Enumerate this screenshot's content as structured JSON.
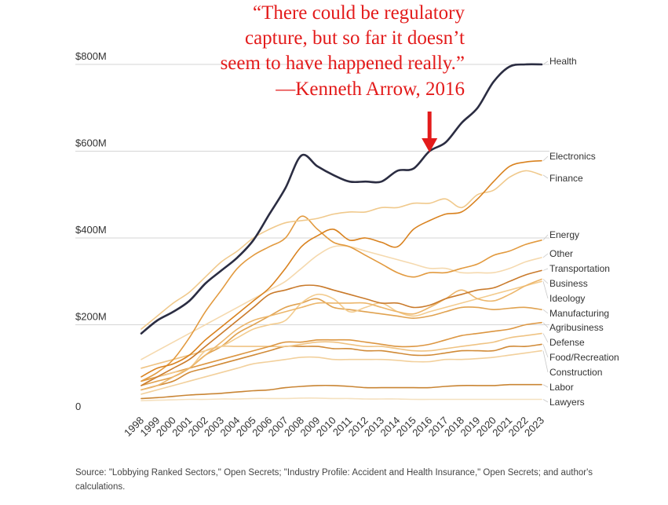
{
  "chart_data": {
    "type": "line",
    "title": "",
    "xlabel": "",
    "ylabel": "",
    "x": [
      1998,
      1999,
      2000,
      2001,
      2002,
      2003,
      2004,
      2005,
      2006,
      2007,
      2008,
      2009,
      2010,
      2011,
      2012,
      2013,
      2014,
      2015,
      2016,
      2017,
      2018,
      2019,
      2020,
      2021,
      2022,
      2023
    ],
    "ylim": [
      0,
      800
    ],
    "y_ticks": [
      {
        "value": 800,
        "label": "$800M"
      },
      {
        "value": 600,
        "label": "$600M"
      },
      {
        "value": 400,
        "label": "$400M"
      },
      {
        "value": 200,
        "label": "$200M"
      },
      {
        "value": 0,
        "label": "0"
      }
    ],
    "series": [
      {
        "name": "Health",
        "color": "#2b2d42",
        "highlight": true,
        "values": [
          180,
          210,
          230,
          255,
          295,
          325,
          355,
          395,
          455,
          515,
          590,
          565,
          545,
          530,
          530,
          530,
          555,
          560,
          600,
          620,
          665,
          700,
          760,
          795,
          800,
          800
        ]
      },
      {
        "name": "Electronics",
        "color": "#d9821f",
        "values": [
          80,
          100,
          110,
          130,
          165,
          195,
          225,
          255,
          285,
          330,
          380,
          405,
          420,
          395,
          400,
          390,
          380,
          420,
          440,
          455,
          460,
          490,
          530,
          565,
          575,
          578
        ]
      },
      {
        "name": "Finance",
        "color": "#f0c98c",
        "values": [
          190,
          220,
          250,
          275,
          310,
          345,
          370,
          400,
          420,
          435,
          440,
          445,
          455,
          460,
          460,
          470,
          470,
          480,
          480,
          490,
          470,
          500,
          510,
          540,
          555,
          545
        ]
      },
      {
        "name": "Energy",
        "color": "#e29a3f",
        "values": [
          70,
          90,
          120,
          170,
          230,
          280,
          330,
          360,
          380,
          400,
          450,
          420,
          390,
          380,
          360,
          340,
          320,
          310,
          320,
          320,
          330,
          340,
          360,
          370,
          385,
          395
        ]
      },
      {
        "name": "Other",
        "color": "#f5d9ae",
        "values": [
          120,
          140,
          160,
          180,
          200,
          220,
          240,
          260,
          280,
          300,
          330,
          360,
          380,
          380,
          370,
          360,
          350,
          340,
          330,
          330,
          320,
          320,
          320,
          330,
          345,
          355
        ]
      },
      {
        "name": "Transportation",
        "color": "#c97a2b",
        "values": [
          60,
          80,
          100,
          120,
          150,
          180,
          210,
          240,
          270,
          280,
          290,
          290,
          280,
          270,
          260,
          250,
          250,
          240,
          245,
          260,
          270,
          280,
          285,
          300,
          315,
          325
        ]
      },
      {
        "name": "Business",
        "color": "#ecb66b",
        "values": [
          50,
          60,
          80,
          100,
          130,
          160,
          190,
          210,
          220,
          230,
          240,
          250,
          250,
          250,
          250,
          240,
          230,
          225,
          240,
          260,
          280,
          260,
          255,
          270,
          290,
          305
        ]
      },
      {
        "name": "Ideology",
        "color": "#f3cc8f",
        "values": [
          60,
          80,
          90,
          100,
          140,
          150,
          170,
          190,
          200,
          210,
          250,
          270,
          260,
          230,
          240,
          250,
          230,
          220,
          230,
          240,
          250,
          260,
          270,
          280,
          290,
          300
        ]
      },
      {
        "name": "Manufacturing",
        "color": "#e0a250",
        "values": [
          60,
          70,
          80,
          100,
          130,
          150,
          180,
          200,
          220,
          240,
          250,
          260,
          240,
          235,
          230,
          225,
          220,
          215,
          220,
          230,
          240,
          240,
          235,
          238,
          240,
          235
        ]
      },
      {
        "name": "Agribusiness",
        "color": "#dc9641",
        "values": [
          70,
          80,
          90,
          100,
          110,
          120,
          130,
          140,
          150,
          160,
          160,
          165,
          165,
          165,
          160,
          155,
          150,
          150,
          155,
          165,
          175,
          180,
          185,
          190,
          200,
          205
        ]
      },
      {
        "name": "Defense",
        "color": "#efc383",
        "values": [
          100,
          110,
          120,
          130,
          140,
          150,
          150,
          150,
          150,
          150,
          155,
          160,
          160,
          155,
          150,
          150,
          145,
          140,
          140,
          145,
          150,
          155,
          160,
          170,
          175,
          180
        ]
      },
      {
        "name": "Food/Recreation",
        "color": "#d08a37",
        "values": [
          50,
          60,
          70,
          90,
          100,
          110,
          120,
          130,
          140,
          150,
          150,
          150,
          145,
          145,
          140,
          140,
          135,
          130,
          130,
          135,
          140,
          140,
          140,
          150,
          150,
          155
        ]
      },
      {
        "name": "Construction",
        "color": "#f2d09c",
        "values": [
          40,
          50,
          60,
          70,
          80,
          90,
          100,
          110,
          115,
          120,
          125,
          125,
          120,
          120,
          120,
          120,
          118,
          115,
          115,
          120,
          120,
          122,
          125,
          130,
          135,
          140
        ]
      },
      {
        "name": "Labor",
        "color": "#c98534",
        "values": [
          30,
          32,
          35,
          38,
          40,
          42,
          45,
          48,
          50,
          55,
          58,
          60,
          60,
          58,
          55,
          55,
          55,
          55,
          55,
          58,
          60,
          60,
          60,
          62,
          62,
          62
        ]
      },
      {
        "name": "Lawyers",
        "color": "#f5e1c0",
        "values": [
          25,
          26,
          27,
          28,
          28,
          29,
          29,
          30,
          30,
          30,
          31,
          31,
          30,
          30,
          29,
          29,
          29,
          28,
          28,
          28,
          28,
          28,
          28,
          28,
          28,
          28
        ]
      }
    ],
    "annotation": {
      "lines": [
        "“There could be regulatory",
        "capture, but so far it doesn’t",
        "seem to have happened really.”",
        "—Kenneth Arrow, 2016"
      ],
      "arrow_year": 2016,
      "color": "#e31b1b"
    },
    "source_note": "Source: \"Lobbying Ranked Sectors,\" Open Secrets; \"Industry Profile: Accident and Health Insurance,\" Open Secrets; and author's calculations."
  }
}
